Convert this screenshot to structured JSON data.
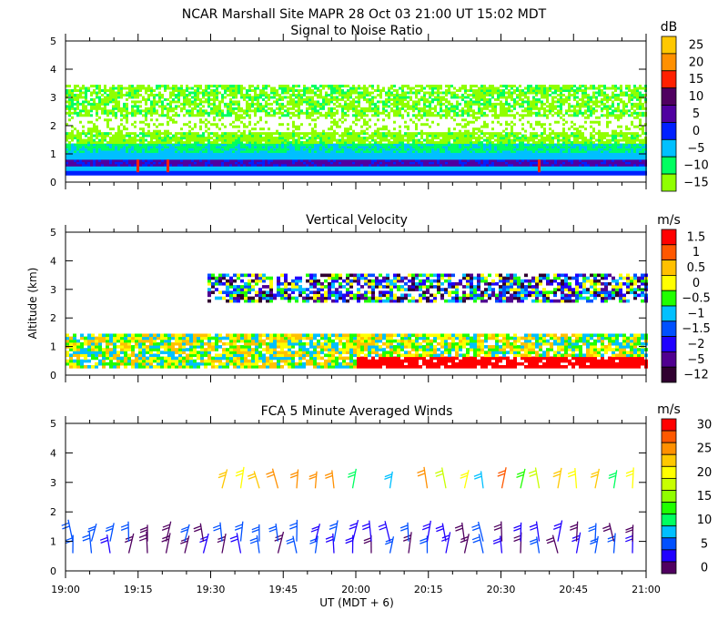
{
  "header": {
    "title": "NCAR Marshall Site   MAPR 28 Oct 03   21:00 UT   15:02   MDT"
  },
  "chart_data": [
    {
      "type": "heatmap",
      "title": "Signal to Noise Ratio",
      "ylabel": "",
      "ylim": [
        0,
        5
      ],
      "yticks": [
        "0",
        "1",
        "2",
        "3",
        "4",
        "5"
      ],
      "colorbar": {
        "unit": "dB",
        "labels": [
          "25",
          "20",
          "15",
          "10",
          "5",
          "0",
          "−5",
          "−10",
          "−15"
        ],
        "colors": [
          "#ffc800",
          "#ff9000",
          "#ff2000",
          "#500060",
          "#5000a0",
          "#0020ff",
          "#00c0ff",
          "#00ff60",
          "#90ff00"
        ]
      }
    },
    {
      "type": "heatmap",
      "title": "Vertical Velocity",
      "ylabel": "Altitude (km)",
      "ylim": [
        0,
        5
      ],
      "yticks": [
        "0",
        "1",
        "2",
        "3",
        "4",
        "5"
      ],
      "colorbar": {
        "unit": "m/s",
        "labels": [
          "1.5",
          "1",
          "0.5",
          "0",
          "−0.5",
          "−1",
          "−1.5",
          "−2",
          "−5",
          "−12"
        ],
        "colors": [
          "#ff0000",
          "#ff5800",
          "#ffc000",
          "#ffff00",
          "#20ff00",
          "#00c0ff",
          "#0050ff",
          "#2000ff",
          "#500090",
          "#300030"
        ]
      }
    },
    {
      "type": "scatter",
      "title": "FCA 5 Minute Averaged Winds",
      "ylabel": "",
      "ylim": [
        0,
        5
      ],
      "yticks": [
        "0",
        "1",
        "2",
        "3",
        "4",
        "5"
      ],
      "colorbar": {
        "unit": "m/s",
        "labels": [
          "30",
          "25",
          "20",
          "15",
          "10",
          "5",
          "0"
        ],
        "colors": [
          "#ff0000",
          "#ff5800",
          "#ff9000",
          "#ffc800",
          "#ffff00",
          "#c8ff00",
          "#90ff00",
          "#20ff00",
          "#00ff60",
          "#00c0ff",
          "#0050ff",
          "#2000ff",
          "#500060"
        ]
      }
    }
  ],
  "xaxis": {
    "ticks": [
      "19:00",
      "19:15",
      "19:30",
      "19:45",
      "20:00",
      "20:15",
      "20:30",
      "20:45",
      "21:00"
    ],
    "label": "UT  (MDT + 6)"
  }
}
